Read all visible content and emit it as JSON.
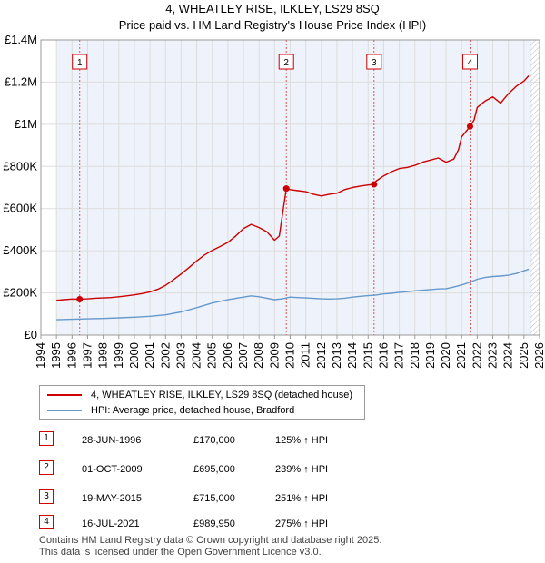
{
  "chart_data": {
    "type": "line",
    "title": "4, WHEATLEY RISE, ILKLEY, LS29 8SQ",
    "subtitle": "Price paid vs. HM Land Registry's House Price Index (HPI)",
    "xlabel": "",
    "ylabel": "",
    "xlim": [
      1994,
      2026
    ],
    "ylim": [
      0,
      1400000
    ],
    "x_ticks": [
      "1994",
      "1995",
      "1996",
      "1997",
      "1998",
      "1999",
      "2000",
      "2001",
      "2002",
      "2003",
      "2004",
      "2005",
      "2006",
      "2007",
      "2008",
      "2009",
      "2010",
      "2011",
      "2012",
      "2013",
      "2014",
      "2015",
      "2016",
      "2017",
      "2018",
      "2019",
      "2020",
      "2021",
      "2022",
      "2023",
      "2024",
      "2025",
      "2026"
    ],
    "y_ticks": [
      {
        "value": 0,
        "label": "£0"
      },
      {
        "value": 200000,
        "label": "£200K"
      },
      {
        "value": 400000,
        "label": "£400K"
      },
      {
        "value": 600000,
        "label": "£600K"
      },
      {
        "value": 800000,
        "label": "£800K"
      },
      {
        "value": 1000000,
        "label": "£1M"
      },
      {
        "value": 1200000,
        "label": "£1.2M"
      },
      {
        "value": 1400000,
        "label": "£1.4M"
      }
    ],
    "data_start_year": 1995,
    "data_end_year": 2025.5,
    "shaded_after": 2025.4,
    "series": [
      {
        "name": "4, WHEATLEY RISE, ILKLEY, LS29 8SQ (detached house)",
        "color": "#cc0000",
        "x": [
          1995.0,
          1995.5,
          1996.0,
          1996.49,
          1997.0,
          1997.5,
          1998.0,
          1998.5,
          1999.0,
          1999.5,
          2000.0,
          2000.5,
          2001.0,
          2001.5,
          2002.0,
          2002.5,
          2003.0,
          2003.5,
          2004.0,
          2004.5,
          2005.0,
          2005.5,
          2006.0,
          2006.5,
          2007.0,
          2007.5,
          2008.0,
          2008.5,
          2009.0,
          2009.3,
          2009.75,
          2010.0,
          2010.5,
          2011.0,
          2011.5,
          2012.0,
          2012.5,
          2013.0,
          2013.5,
          2014.0,
          2014.5,
          2015.0,
          2015.38,
          2015.5,
          2016.0,
          2016.5,
          2017.0,
          2017.5,
          2018.0,
          2018.5,
          2019.0,
          2019.5,
          2020.0,
          2020.5,
          2020.8,
          2021.0,
          2021.54,
          2021.8,
          2022.0,
          2022.5,
          2023.0,
          2023.5,
          2024.0,
          2024.5,
          2025.0,
          2025.3
        ],
        "values": [
          165000,
          168000,
          171000,
          170000,
          172000,
          175000,
          176000,
          178000,
          182000,
          186000,
          191000,
          197000,
          205000,
          217000,
          236000,
          262000,
          290000,
          320000,
          352000,
          380000,
          402000,
          420000,
          440000,
          470000,
          505000,
          525000,
          510000,
          490000,
          450000,
          470000,
          695000,
          690000,
          685000,
          680000,
          668000,
          660000,
          668000,
          673000,
          690000,
          700000,
          707000,
          712000,
          715000,
          730000,
          755000,
          775000,
          790000,
          795000,
          805000,
          820000,
          830000,
          840000,
          820000,
          835000,
          880000,
          940000,
          989950,
          1020000,
          1080000,
          1110000,
          1130000,
          1100000,
          1145000,
          1180000,
          1205000,
          1230000
        ]
      },
      {
        "name": "HPI: Average price, detached house, Bradford",
        "color": "#6699cc",
        "x": [
          1995.0,
          1996.0,
          1997.0,
          1998.0,
          1999.0,
          2000.0,
          2001.0,
          2002.0,
          2003.0,
          2004.0,
          2005.0,
          2006.0,
          2007.0,
          2007.5,
          2008.0,
          2008.5,
          2009.0,
          2009.5,
          2010.0,
          2010.5,
          2011.0,
          2011.5,
          2012.0,
          2012.5,
          2013.0,
          2013.5,
          2014.0,
          2014.5,
          2015.0,
          2015.5,
          2016.0,
          2016.5,
          2017.0,
          2017.5,
          2018.0,
          2018.5,
          2019.0,
          2019.5,
          2020.0,
          2020.5,
          2021.0,
          2021.5,
          2022.0,
          2022.5,
          2023.0,
          2023.5,
          2024.0,
          2024.5,
          2025.0,
          2025.3
        ],
        "values": [
          73000,
          75000,
          77000,
          79000,
          82000,
          85000,
          89000,
          96000,
          110000,
          130000,
          152000,
          168000,
          180000,
          186000,
          182000,
          175000,
          168000,
          172000,
          180000,
          178000,
          176000,
          174000,
          172000,
          171000,
          172000,
          175000,
          180000,
          184000,
          187000,
          190000,
          195000,
          198000,
          203000,
          206000,
          210000,
          213000,
          216000,
          219000,
          220000,
          228000,
          238000,
          250000,
          265000,
          273000,
          278000,
          280000,
          284000,
          292000,
          305000,
          312000
        ]
      }
    ],
    "sales": [
      {
        "label": "1",
        "x": 1996.49,
        "value": 170000
      },
      {
        "label": "2",
        "x": 2009.75,
        "value": 695000
      },
      {
        "label": "3",
        "x": 2015.38,
        "value": 715000
      },
      {
        "label": "4",
        "x": 2021.54,
        "value": 989950
      }
    ]
  },
  "legend": {
    "property": "4, WHEATLEY RISE, ILKLEY, LS29 8SQ (detached house)",
    "hpi": "HPI: Average price, detached house, Bradford"
  },
  "transactions": [
    {
      "num": "1",
      "date": "28-JUN-1996",
      "price": "£170,000",
      "hpi": "125% ↑ HPI"
    },
    {
      "num": "2",
      "date": "01-OCT-2009",
      "price": "£695,000",
      "hpi": "239% ↑ HPI"
    },
    {
      "num": "3",
      "date": "19-MAY-2015",
      "price": "£715,000",
      "hpi": "251% ↑ HPI"
    },
    {
      "num": "4",
      "date": "16-JUL-2021",
      "price": "£989,950",
      "hpi": "275% ↑ HPI"
    }
  ],
  "footer": {
    "line1": "Contains HM Land Registry data © Crown copyright and database right 2025.",
    "line2": "This data is licensed under the Open Government Licence v3.0."
  }
}
